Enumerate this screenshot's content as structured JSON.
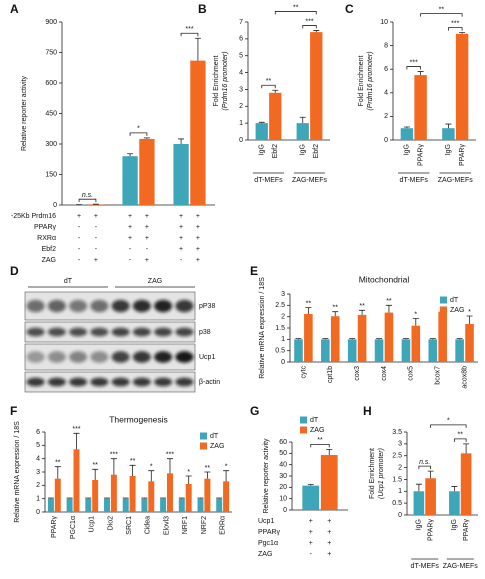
{
  "chart_data": [
    {
      "panel": "A",
      "type": "bar",
      "ylabel": "Relative reporter activity",
      "values": [
        1,
        3,
        240,
        325,
        300,
        710
      ],
      "errors": [
        1,
        1,
        12,
        5,
        25,
        110
      ],
      "colors": [
        "#3ea6b9",
        "#f26a22",
        "#3ea6b9",
        "#f26a22",
        "#3ea6b9",
        "#f26a22"
      ],
      "ylim": [
        0,
        900
      ],
      "yticks": [
        0,
        150,
        300,
        450,
        600,
        750,
        900
      ],
      "conditions": [
        {
          "label": "-25Kb Prdm16",
          "marks": [
            "+",
            "+",
            "+",
            "+",
            "+",
            "+"
          ]
        },
        {
          "label": "PPARγ",
          "marks": [
            "-",
            "-",
            "+",
            "+",
            "+",
            "+"
          ]
        },
        {
          "label": "RXRα",
          "marks": [
            "-",
            "-",
            "+",
            "+",
            "+",
            "+"
          ]
        },
        {
          "label": "Ebf2",
          "marks": [
            "-",
            "-",
            "-",
            "-",
            "+",
            "+"
          ]
        },
        {
          "label": "ZAG",
          "marks": [
            "-",
            "+",
            "-",
            "+",
            "-",
            "+"
          ]
        }
      ],
      "annotations": [
        {
          "text": "n.s.",
          "from": 0,
          "to": 1
        },
        {
          "text": "*",
          "from": 2,
          "to": 3
        },
        {
          "text": "***",
          "from": 4,
          "to": 5
        }
      ]
    },
    {
      "panel": "B",
      "type": "bar",
      "ylabel": "Fold Enrichment",
      "ylabel2": "(Prdm16 promoter)",
      "categories": [
        "IgG",
        "Ebf2",
        "IgG",
        "Ebf2"
      ],
      "groups": [
        "dT-MEFs",
        "ZAG-MEFs"
      ],
      "values": [
        1,
        2.8,
        1,
        6.4
      ],
      "errors": [
        0.05,
        0.15,
        0.35,
        0.1
      ],
      "colors": [
        "#3ea6b9",
        "#f26a22",
        "#3ea6b9",
        "#f26a22"
      ],
      "ylim": [
        0,
        7
      ],
      "yticks": [
        0,
        1,
        2,
        3,
        4,
        5,
        6,
        7
      ],
      "annotations": [
        {
          "text": "**",
          "from": 0,
          "to": 1
        },
        {
          "text": "***",
          "from": 2,
          "to": 3
        },
        {
          "text": "**",
          "from": 1,
          "to": 3
        }
      ]
    },
    {
      "panel": "C",
      "type": "bar",
      "ylabel": "Fold Enrichment",
      "ylabel2": "(Prdm16 promoter)",
      "categories": [
        "IgG",
        "PPARγ",
        "IgG",
        "PPARγ"
      ],
      "groups": [
        "dT-MEFs",
        "ZAG-MEFs"
      ],
      "values": [
        1,
        5.5,
        1,
        9
      ],
      "errors": [
        0.1,
        0.3,
        0.35,
        0.1
      ],
      "colors": [
        "#3ea6b9",
        "#f26a22",
        "#3ea6b9",
        "#f26a22"
      ],
      "ylim": [
        0,
        10
      ],
      "yticks": [
        0,
        2,
        4,
        6,
        8,
        10
      ],
      "annotations": [
        {
          "text": "***",
          "from": 0,
          "to": 1
        },
        {
          "text": "***",
          "from": 2,
          "to": 3
        },
        {
          "text": "**",
          "from": 1,
          "to": 3
        }
      ]
    },
    {
      "panel": "E",
      "type": "bar",
      "title": "Mitochondrial",
      "ylabel": "Relative mRNA expression / 18S",
      "categories": [
        "cytc",
        "cpt1b",
        "cox3",
        "cox4",
        "cox5",
        "bcox7",
        "acox8b"
      ],
      "series": [
        {
          "name": "dT",
          "color": "#3ea6b9",
          "values": [
            1,
            1,
            1,
            1,
            1,
            1,
            1
          ],
          "errors": [
            0.03,
            0.03,
            0.03,
            0.03,
            0.03,
            0.03,
            0.03
          ]
        },
        {
          "name": "ZAG",
          "color": "#f26a22",
          "values": [
            2.12,
            2.02,
            2.08,
            2.18,
            1.6,
            2.22,
            1.68
          ],
          "errors": [
            0.28,
            0.2,
            0.2,
            0.32,
            0.32,
            0.2,
            0.35
          ]
        }
      ],
      "stars": [
        "**",
        "**",
        "**",
        "**",
        "*",
        "**",
        "*"
      ],
      "ylim": [
        0,
        3
      ],
      "yticks": [
        0,
        0.5,
        1,
        1.5,
        2,
        2.5,
        3
      ]
    },
    {
      "panel": "F",
      "type": "bar",
      "title": "Thermogenesis",
      "ylabel": "Relative mRNA expression / 18S",
      "categories": [
        "PPARγ",
        "PGC1α",
        "Ucp1",
        "Dio2",
        "SRC1",
        "Cidea",
        "Elovl3",
        "NRF1",
        "NRF2",
        "ERRα"
      ],
      "series": [
        {
          "name": "dT",
          "color": "#3ea6b9",
          "values": [
            1,
            1,
            1,
            1,
            1,
            1,
            1,
            1,
            1,
            1
          ],
          "errors": [
            0.05,
            0.05,
            0.05,
            0.05,
            0.05,
            0.05,
            0.05,
            0.05,
            0.05,
            0.05
          ]
        },
        {
          "name": "ZAG",
          "color": "#f26a22",
          "values": [
            2.5,
            4.7,
            2.4,
            2.8,
            2.7,
            2.3,
            2.9,
            2.1,
            2.5,
            2.3
          ],
          "errors": [
            0.9,
            1.2,
            0.8,
            1.2,
            0.8,
            0.8,
            1.1,
            0.6,
            0.5,
            0.8
          ]
        }
      ],
      "stars": [
        "**",
        "***",
        "**",
        "***",
        "**",
        "*",
        "***",
        "*",
        "**",
        "*"
      ],
      "ylim": [
        0,
        6
      ],
      "yticks": [
        0,
        1,
        2,
        3,
        4,
        5,
        6
      ]
    },
    {
      "panel": "G",
      "type": "bar",
      "ylabel": "Relative reporter activity",
      "values": [
        21.5,
        48.5
      ],
      "errors": [
        1,
        5
      ],
      "colors": [
        "#3ea6b9",
        "#f26a22"
      ],
      "legend": [
        {
          "name": "dT",
          "color": "#3ea6b9"
        },
        {
          "name": "ZAG",
          "color": "#f26a22"
        }
      ],
      "ylim": [
        0,
        60
      ],
      "yticks": [
        0,
        10,
        20,
        30,
        40,
        50,
        60
      ],
      "conditions": [
        {
          "label": "Ucp1",
          "marks": [
            "+",
            "+"
          ]
        },
        {
          "label": "PPARγ",
          "marks": [
            "+",
            "+"
          ]
        },
        {
          "label": "Pgc1α",
          "marks": [
            "+",
            "+"
          ]
        },
        {
          "label": "ZAG",
          "marks": [
            "-",
            "+"
          ]
        }
      ],
      "annotations": [
        {
          "text": "**",
          "from": 0,
          "to": 1
        }
      ]
    },
    {
      "panel": "H",
      "type": "bar",
      "ylabel": "Fold Enrichment",
      "ylabel2": "(Ucp1 promoter)",
      "categories": [
        "IgG",
        "PPARγ",
        "IgG",
        "PPARγ"
      ],
      "groups": [
        "dT-MEFs",
        "ZAG-MEFs"
      ],
      "values": [
        1,
        1.55,
        1,
        2.6
      ],
      "errors": [
        0.3,
        0.3,
        0.2,
        0.4
      ],
      "colors": [
        "#3ea6b9",
        "#f26a22",
        "#3ea6b9",
        "#f26a22"
      ],
      "ylim": [
        0,
        3.5
      ],
      "yticks": [
        0,
        0.5,
        1,
        1.5,
        2,
        2.5,
        3,
        3.5
      ],
      "annotations": [
        {
          "text": "n.s.",
          "from": 0,
          "to": 1
        },
        {
          "text": "**",
          "from": 2,
          "to": 3
        },
        {
          "text": "*",
          "from": 1,
          "to": 3
        }
      ]
    }
  ],
  "blot": {
    "panel": "D",
    "groups": [
      "dT",
      "ZAG"
    ],
    "rows": [
      "pP38",
      "p38",
      "Ucp1",
      "β-actin"
    ]
  }
}
